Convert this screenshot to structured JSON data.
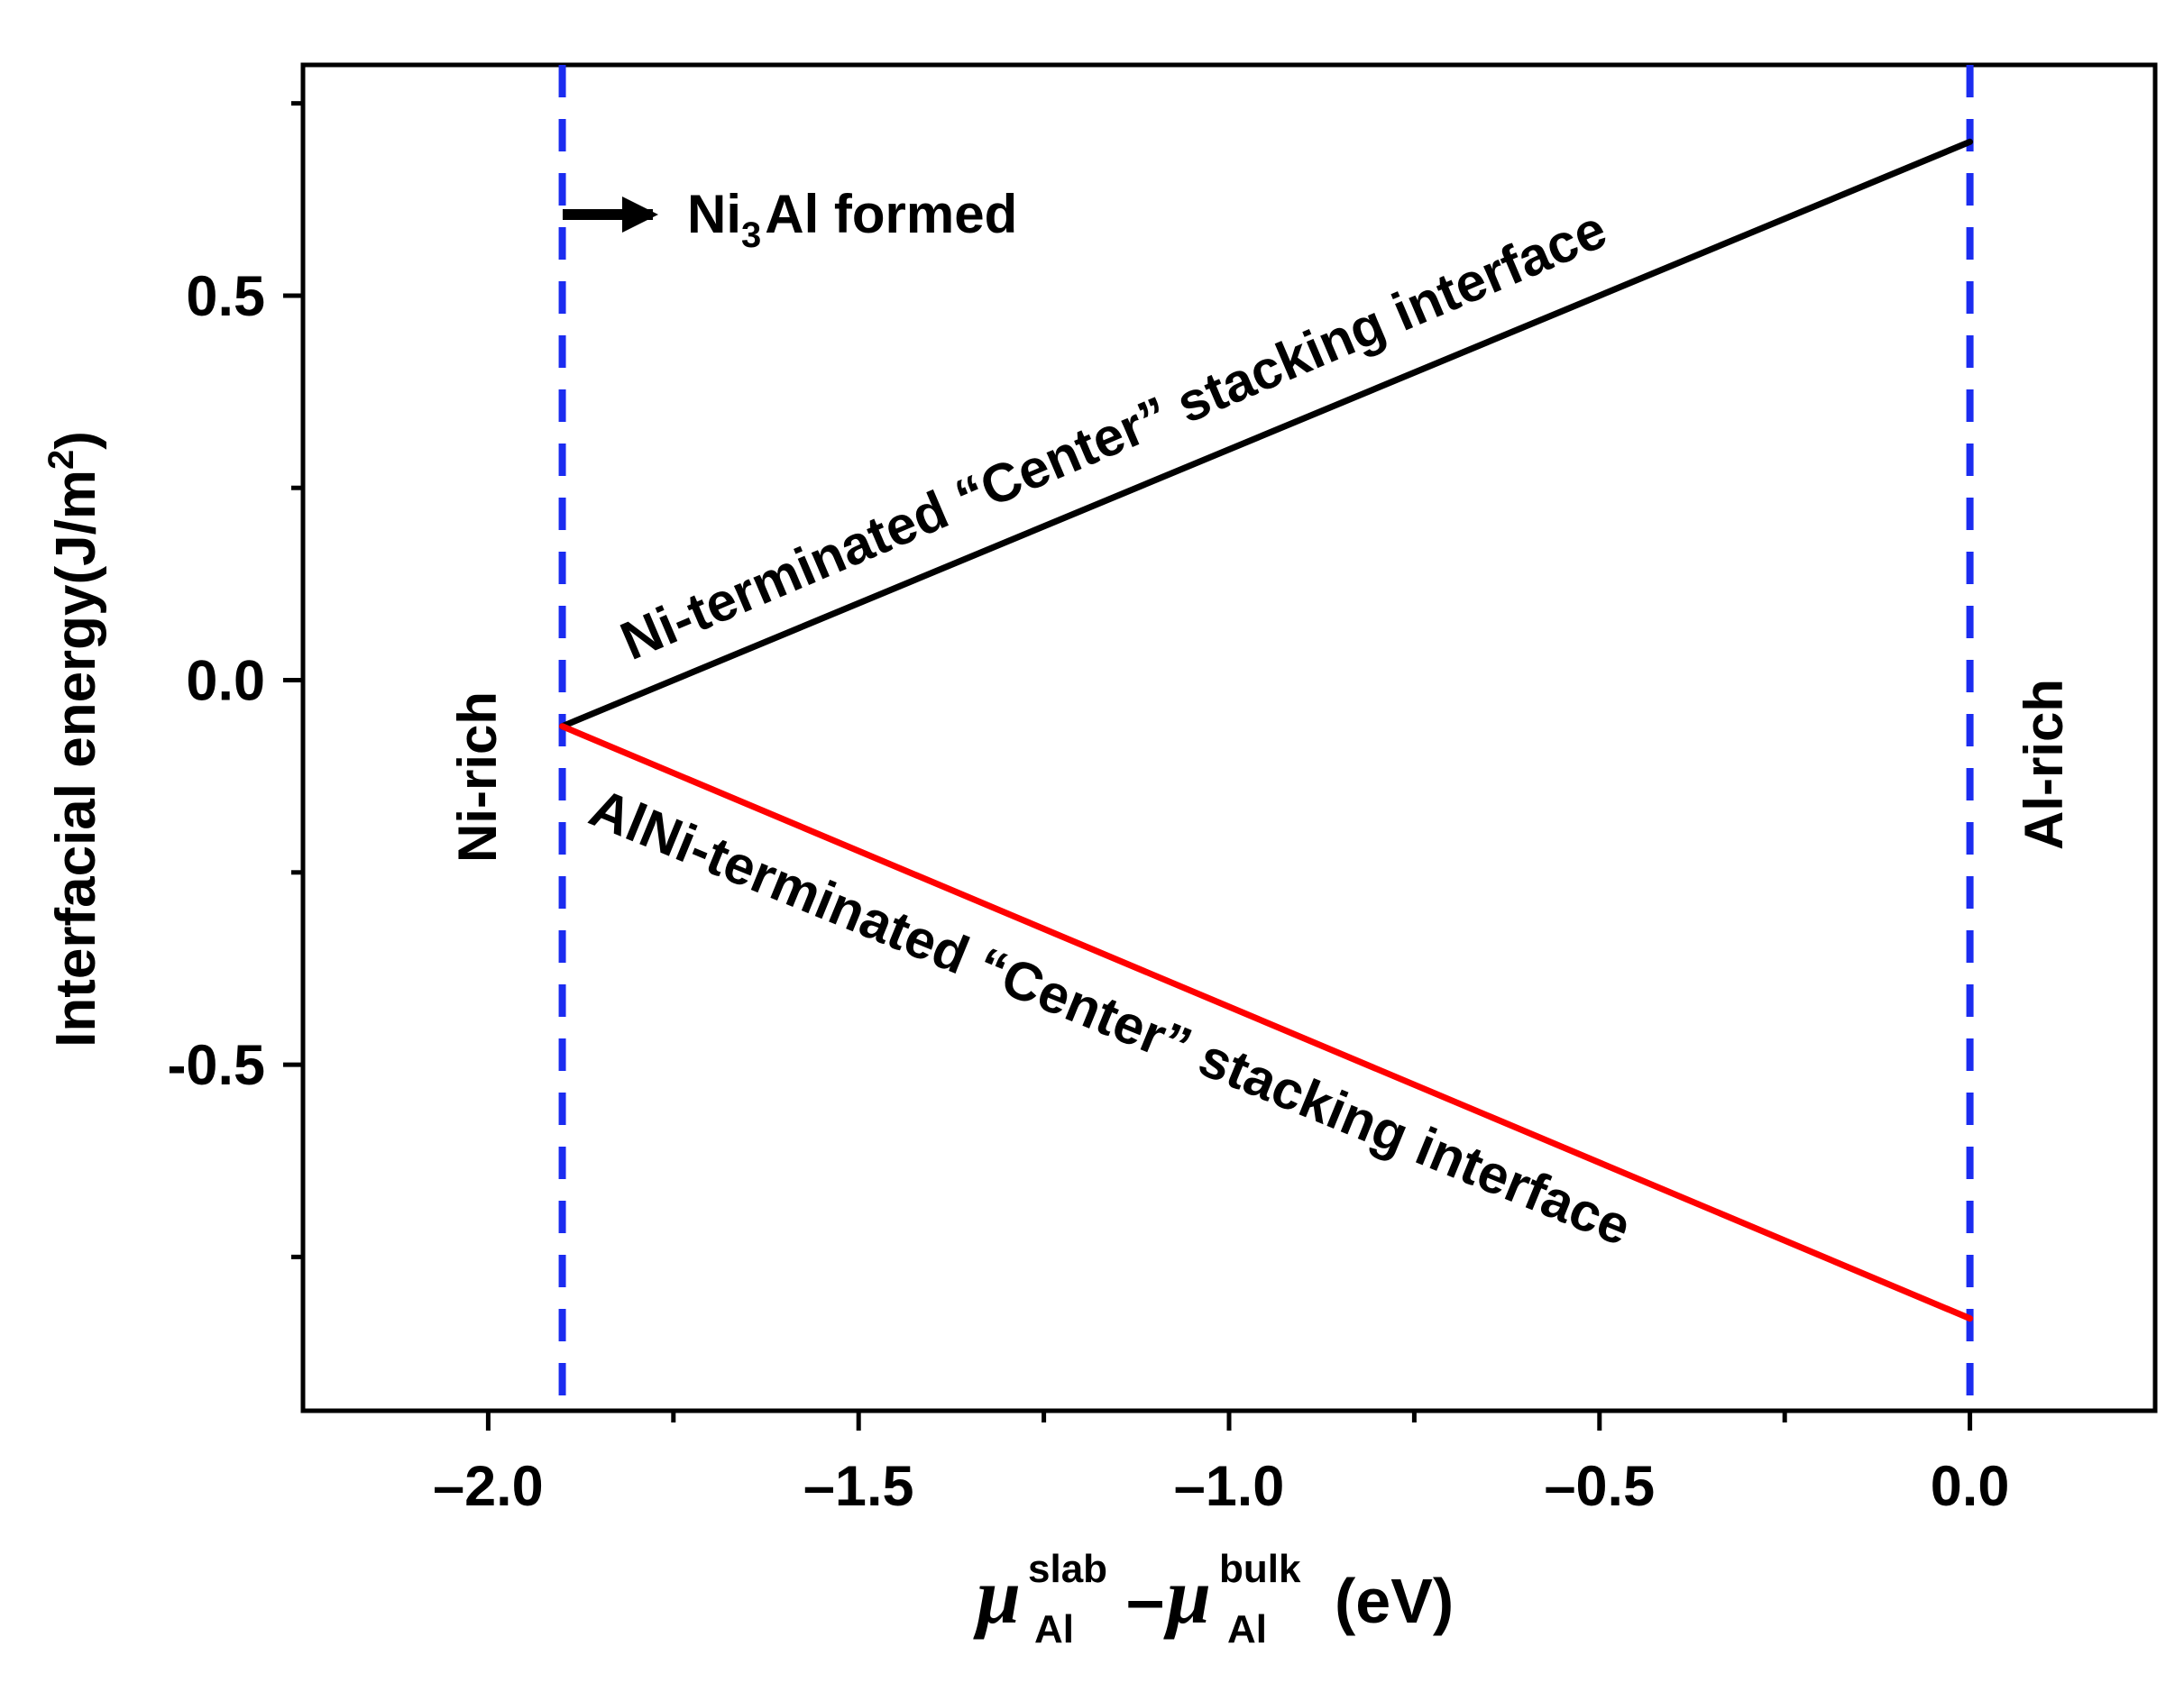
{
  "chart_data": {
    "type": "line",
    "title": "",
    "xlabel": {
      "symbol": "μ",
      "sup1": "slab",
      "sub1": "Al",
      "operator": "–",
      "sup2": "bulk",
      "sub2": "Al",
      "unit": "(eV)"
    },
    "ylabel": {
      "text": "Interfacial energy(J/m",
      "sup": "2",
      "close": ")"
    },
    "xlim": [
      -2.25,
      0.25
    ],
    "ylim": [
      -0.95,
      0.8
    ],
    "xticks": [
      -2.0,
      -1.5,
      -1.0,
      -0.5,
      0.0
    ],
    "xtick_labels": [
      "–2.0",
      "–1.5",
      "–1.0",
      "–0.5",
      "0.0"
    ],
    "xminor": [
      -1.75,
      -1.25,
      -0.75,
      -0.25
    ],
    "yticks": [
      0.5,
      0.0,
      -0.5
    ],
    "ytick_labels": [
      "0.5",
      "0.0",
      "-0.5"
    ],
    "yminor": [
      0.75,
      0.25,
      -0.25,
      -0.75
    ],
    "grid": false,
    "series": [
      {
        "name": "Ni-terminated “Center” stacking interface",
        "color": "#000000",
        "x": [
          -1.9,
          0.0
        ],
        "y": [
          -0.06,
          0.7
        ]
      },
      {
        "name": "AlNi-terminated “Center” stacking interface",
        "color": "#ff0000",
        "x": [
          -1.9,
          0.0
        ],
        "y": [
          -0.06,
          -0.83
        ]
      }
    ],
    "vlines": [
      {
        "x": -1.9,
        "color": "#1b2cf0",
        "style": "dashed"
      },
      {
        "x": 0.0,
        "color": "#1b2cf0",
        "style": "dashed"
      }
    ],
    "annotations": {
      "ni_rich": "Ni-rich",
      "al_rich": "Al-rich",
      "ni3al_prefix": "Ni",
      "ni3al_sub": "3",
      "ni3al_suffix": "Al formed",
      "label_black": "Ni-terminated “Center” stacking interface",
      "label_red": "AlNi-terminated “Center” stacking interface"
    }
  }
}
